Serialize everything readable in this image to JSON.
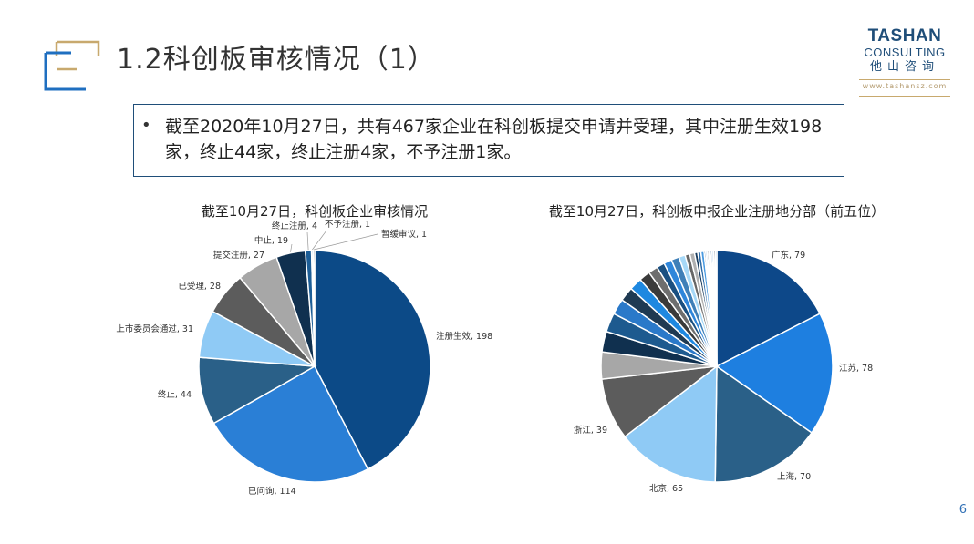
{
  "title": "1.2科创板审核情况（1）",
  "brand": {
    "name_top": "TASHAN",
    "name_sub": "CONSULTING",
    "name_cn": "他山咨询",
    "url": "www.tashansz.com"
  },
  "summary": {
    "bullet": "•",
    "text": "截至2020年10月27日，共有467家企业在科创板提交申请并受理，其中注册生效198家，终止44家，终止注册4家，不予注册1家。"
  },
  "page_number": "6",
  "colors": {
    "accent_blue": "#1f4e79",
    "accent_gold": "#c8a96e"
  },
  "chart_data": [
    {
      "type": "pie",
      "title": "截至10月27日，科创板企业审核情况",
      "label_format": "name_value",
      "slices": [
        {
          "name": "注册生效",
          "value": 198,
          "color": "#0c4a87"
        },
        {
          "name": "已问询",
          "value": 114,
          "color": "#2a7fd6"
        },
        {
          "name": "终止",
          "value": 44,
          "color": "#2a6088"
        },
        {
          "name": "上市委员会通过",
          "value": 31,
          "color": "#8fcaf5"
        },
        {
          "name": "已受理",
          "value": 28,
          "color": "#5c5c5c"
        },
        {
          "name": "提交注册",
          "value": 27,
          "color": "#a7a7a7"
        },
        {
          "name": "中止",
          "value": 19,
          "color": "#10304f"
        },
        {
          "name": "终止注册",
          "value": 4,
          "color": "#1d5e97"
        },
        {
          "name": "不予注册",
          "value": 1,
          "color": "#3a90d8"
        },
        {
          "name": "暂缓审议",
          "value": 1,
          "color": "#222f3c"
        }
      ]
    },
    {
      "type": "pie",
      "title": "截至10月27日，科创板申报企业注册地分部（前五位）",
      "label_format": "name_value",
      "slices": [
        {
          "name": "广东",
          "value": 79,
          "color": "#0d4889",
          "label": true
        },
        {
          "name": "江苏",
          "value": 78,
          "color": "#1e7fe0",
          "label": true
        },
        {
          "name": "上海",
          "value": 70,
          "color": "#2a6088",
          "label": true
        },
        {
          "name": "北京",
          "value": 65,
          "color": "#8fcaf5",
          "label": true
        },
        {
          "name": "浙江",
          "value": 39,
          "color": "#5c5c5c",
          "label": true
        },
        {
          "value": 17,
          "color": "#a7a7a7"
        },
        {
          "value": 13,
          "color": "#10304f"
        },
        {
          "value": 12,
          "color": "#1d5a8f"
        },
        {
          "value": 10,
          "color": "#2a79c9"
        },
        {
          "value": 9,
          "color": "#1f3a52"
        },
        {
          "value": 8,
          "color": "#1e88e0"
        },
        {
          "value": 7,
          "color": "#3a3a3a"
        },
        {
          "value": 6,
          "color": "#6e6e6e"
        },
        {
          "value": 5,
          "color": "#1a4f80"
        },
        {
          "value": 5,
          "color": "#2f86da"
        },
        {
          "value": 5,
          "color": "#3e7fb8"
        },
        {
          "value": 4,
          "color": "#a6d8f7"
        },
        {
          "value": 3,
          "color": "#666666"
        },
        {
          "value": 3,
          "color": "#b0b0b0"
        },
        {
          "value": 2,
          "color": "#1a3b5c"
        },
        {
          "value": 2,
          "color": "#2d6aa6"
        },
        {
          "value": 2,
          "color": "#4a9ae0"
        },
        {
          "value": 1,
          "color": "#203a54"
        },
        {
          "value": 1,
          "color": "#7fb5e5"
        },
        {
          "value": 1,
          "color": "#555555"
        },
        {
          "value": 1,
          "color": "#999999"
        },
        {
          "value": 1,
          "color": "#1d5e97"
        },
        {
          "value": 1,
          "color": "#3a90d8"
        },
        {
          "value": 1,
          "color": "#0c2a4a"
        },
        {
          "value": 1,
          "color": "#9ccff5"
        }
      ]
    }
  ]
}
